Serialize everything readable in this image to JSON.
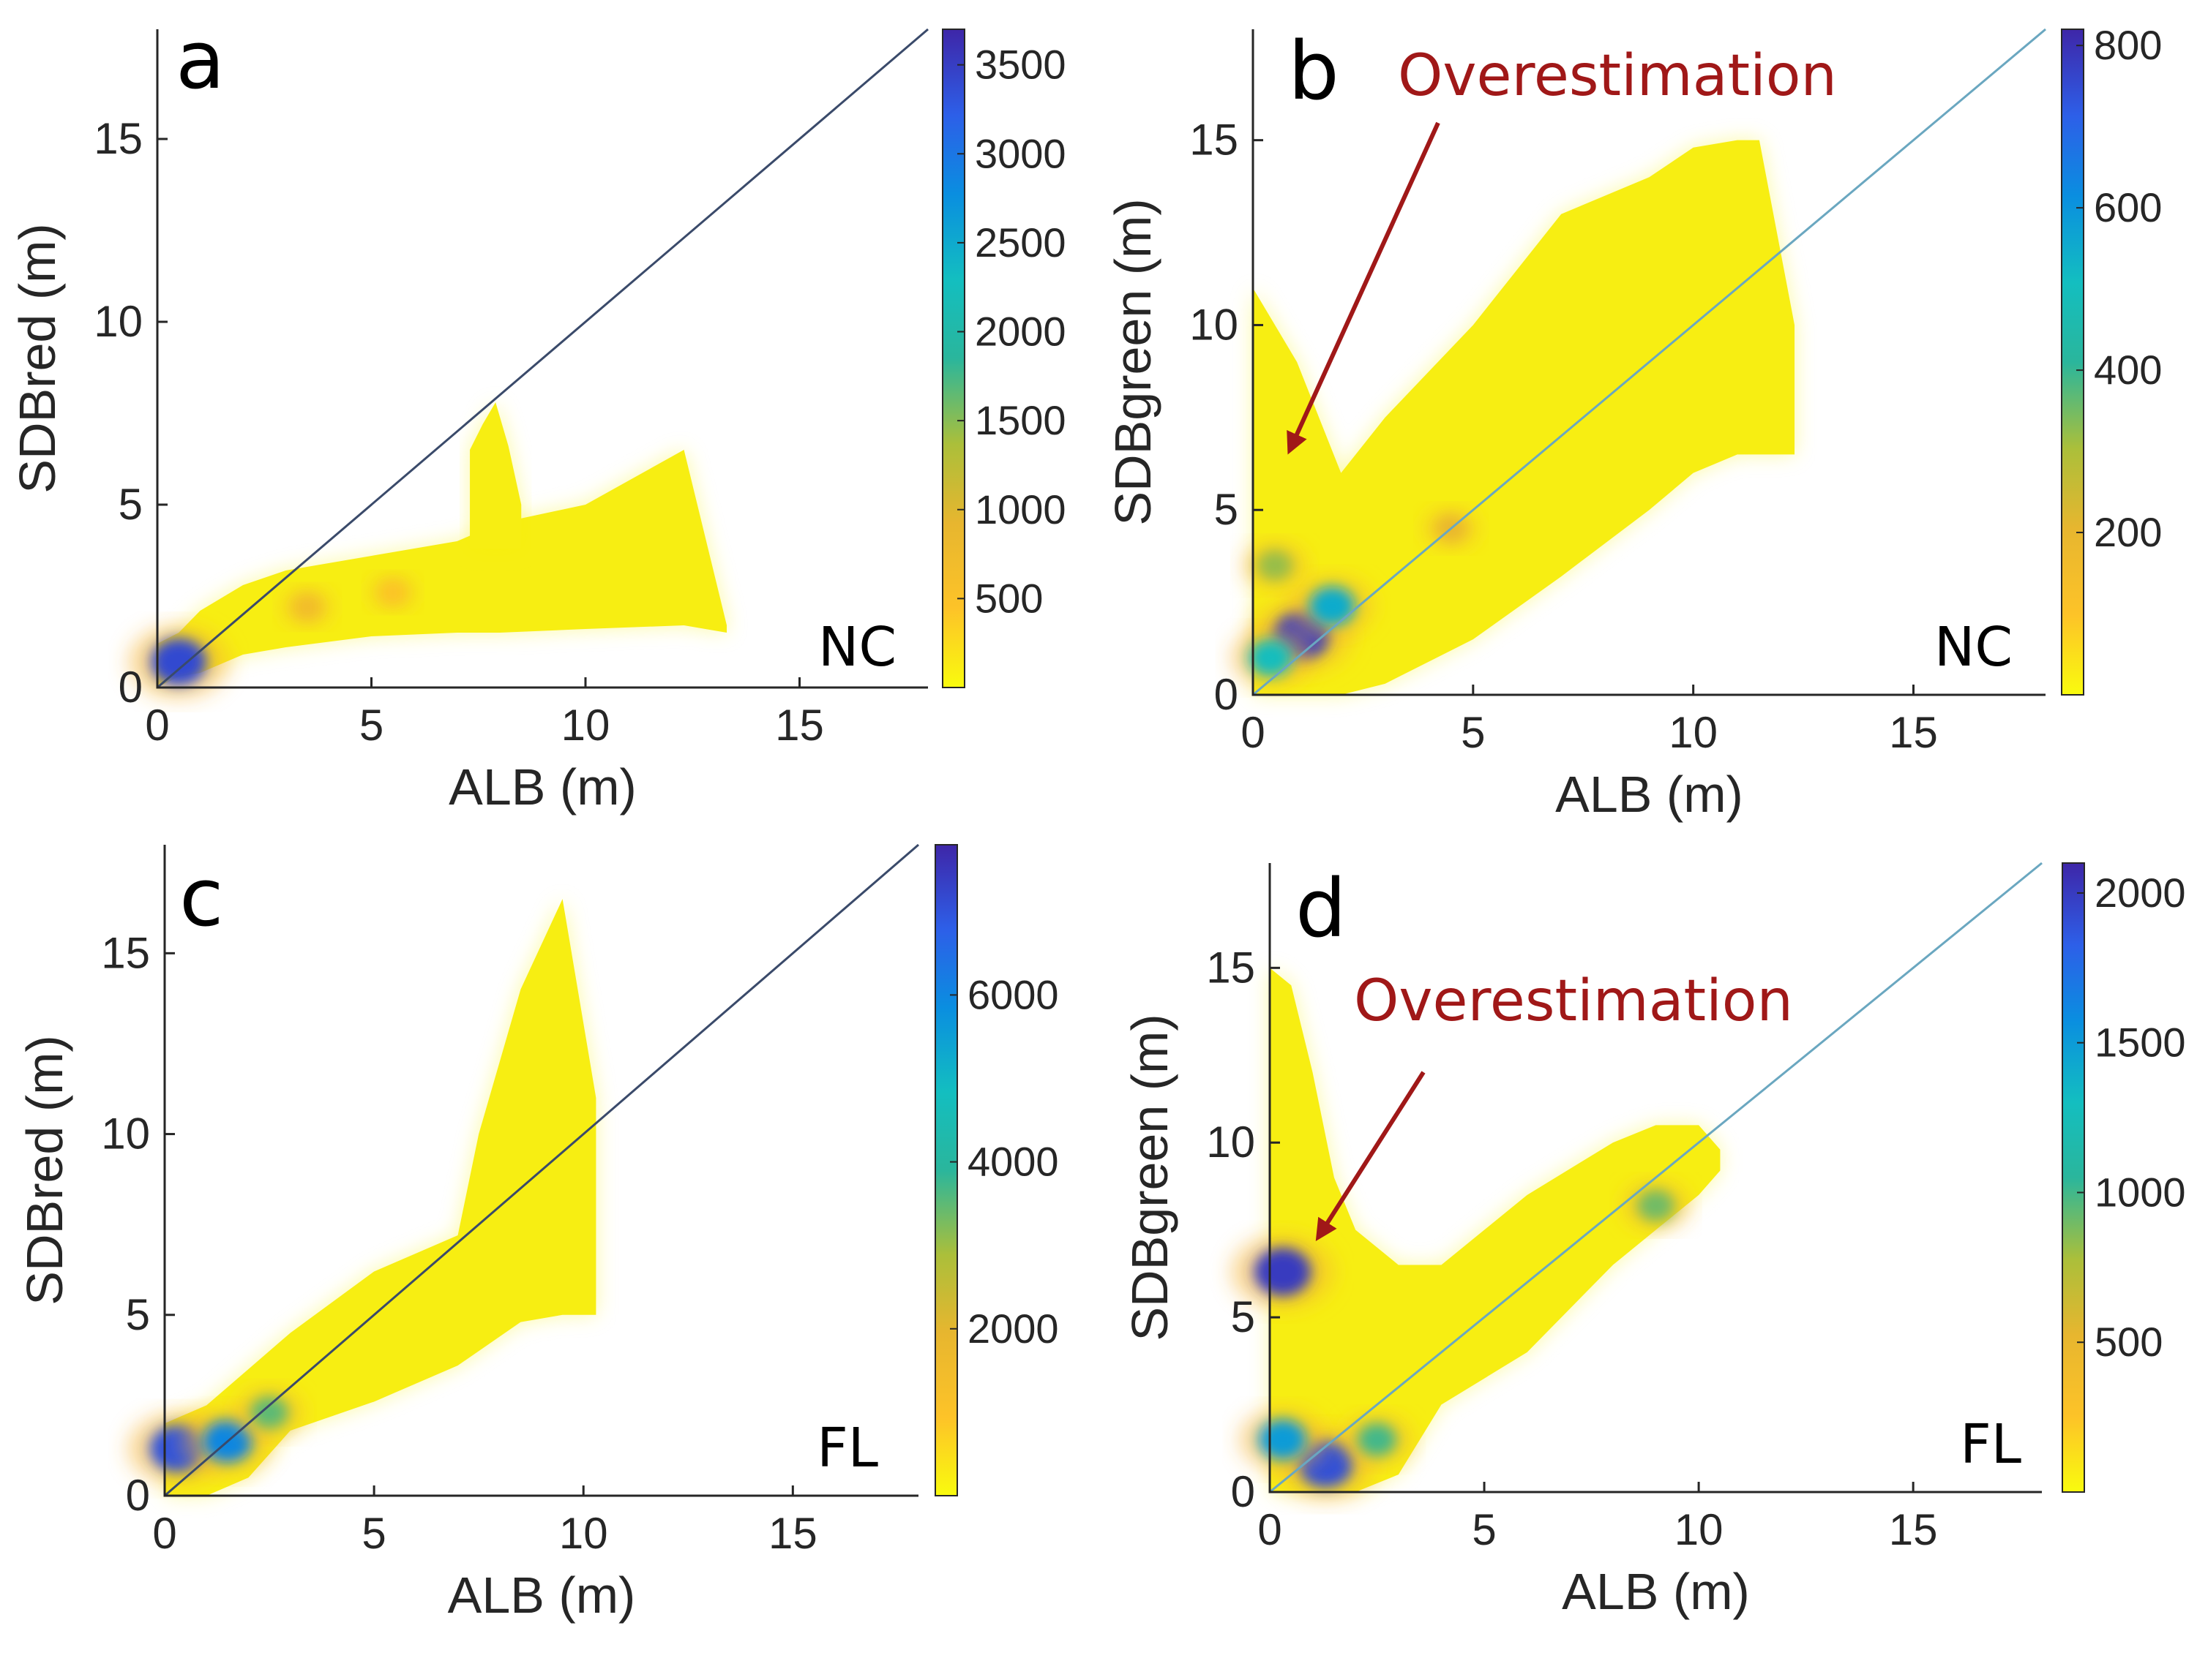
{
  "chart_data": [
    {
      "type": "density-scatter",
      "panel_label": "a",
      "region": "NC",
      "xlabel": "ALB (m)",
      "ylabel": "SDBred (m)",
      "xlim": [
        0,
        18
      ],
      "ylim": [
        0,
        18
      ],
      "xticks": [
        "0",
        "5",
        "10",
        "15"
      ],
      "yticks": [
        "0",
        "5",
        "10",
        "15"
      ],
      "reference_line": "1:1",
      "colorbar": {
        "min": 0,
        "max": 3700,
        "ticks": [
          "500",
          "1000",
          "1500",
          "2000",
          "2500",
          "3000",
          "3500"
        ]
      },
      "annotation": null,
      "cloud": [
        {
          "x": [
            0,
            0.5,
            1,
            2,
            3,
            5,
            7,
            8,
            10,
            12.3,
            13.3
          ],
          "y_low": [
            0,
            0.3,
            0.4,
            0.9,
            1.1,
            1.4,
            1.5,
            1.5,
            1.6,
            1.7,
            1.5
          ],
          "y_high": [
            1.2,
            1.5,
            2.1,
            2.8,
            3.2,
            3.6,
            4.0,
            4.5,
            5.0,
            6.5,
            1.7
          ]
        },
        {
          "x": [
            7.3,
            7.6,
            7.9,
            8.2,
            8.5
          ],
          "y_low": [
            3.8,
            3.8,
            3.8,
            3.8,
            3.8
          ],
          "y_high": [
            6.5,
            7.2,
            7.8,
            6.6,
            5.0
          ]
        }
      ],
      "hotspots": [
        {
          "x": 0.5,
          "y": 0.7,
          "count": 3400
        },
        {
          "x": 3.5,
          "y": 2.2,
          "count": 700
        },
        {
          "x": 5.5,
          "y": 2.6,
          "count": 450
        }
      ]
    },
    {
      "type": "density-scatter",
      "panel_label": "b",
      "region": "NC",
      "xlabel": "ALB (m)",
      "ylabel": "SDBgreen (m)",
      "xlim": [
        0,
        18
      ],
      "ylim": [
        0,
        18
      ],
      "xticks": [
        "0",
        "5",
        "10",
        "15"
      ],
      "yticks": [
        "0",
        "5",
        "10",
        "15"
      ],
      "reference_line": "1:1",
      "colorbar": {
        "min": 0,
        "max": 820,
        "ticks": [
          "200",
          "400",
          "600",
          "800"
        ]
      },
      "annotation": "Overestimation",
      "cloud": [
        {
          "x": [
            0,
            1,
            2,
            3,
            5,
            7,
            9,
            10,
            11,
            11.5,
            12.3
          ],
          "y_low": [
            0,
            0,
            0,
            0.3,
            1.5,
            3.2,
            5.0,
            6.0,
            6.5,
            6.5,
            6.5
          ],
          "y_high": [
            11,
            9,
            6,
            7.5,
            10,
            13,
            14,
            14.8,
            15,
            15,
            10
          ]
        }
      ],
      "hotspots": [
        {
          "x": 1.1,
          "y": 1.6,
          "count": 780
        },
        {
          "x": 1.8,
          "y": 2.4,
          "count": 550
        },
        {
          "x": 0.4,
          "y": 1.0,
          "count": 500
        },
        {
          "x": 0.5,
          "y": 3.5,
          "count": 320
        },
        {
          "x": 4.5,
          "y": 4.5,
          "count": 200
        }
      ]
    },
    {
      "type": "density-scatter",
      "panel_label": "c",
      "region": "FL",
      "xlabel": "ALB (m)",
      "ylabel": "SDBred (m)",
      "xlim": [
        0,
        18
      ],
      "ylim": [
        0,
        18
      ],
      "xticks": [
        "0",
        "5",
        "10",
        "15"
      ],
      "yticks": [
        "0",
        "5",
        "10",
        "15"
      ],
      "reference_line": "1:1",
      "colorbar": {
        "min": 0,
        "max": 7800,
        "ticks": [
          "2000",
          "4000",
          "6000"
        ]
      },
      "annotation": null,
      "cloud": [
        {
          "x": [
            0,
            1,
            2,
            3,
            5,
            7,
            7.5,
            8.5,
            9.5,
            10.3
          ],
          "y_low": [
            0,
            0,
            0.5,
            1.8,
            2.6,
            3.6,
            4.0,
            4.8,
            5.0,
            5.0
          ],
          "y_high": [
            2,
            2.5,
            3.5,
            4.5,
            6.2,
            7.2,
            10,
            14,
            16.5,
            11
          ]
        }
      ],
      "hotspots": [
        {
          "x": 0.3,
          "y": 1.3,
          "count": 7000
        },
        {
          "x": 1.5,
          "y": 1.5,
          "count": 6000
        },
        {
          "x": 2.5,
          "y": 2.3,
          "count": 3500
        }
      ]
    },
    {
      "type": "density-scatter",
      "panel_label": "d",
      "region": "FL",
      "xlabel": "ALB (m)",
      "ylabel": "SDBgreen (m)",
      "xlim": [
        0,
        18
      ],
      "ylim": [
        0,
        18
      ],
      "xticks": [
        "0",
        "5",
        "10",
        "15"
      ],
      "yticks": [
        "0",
        "5",
        "10",
        "15"
      ],
      "reference_line": "1:1",
      "colorbar": {
        "min": 0,
        "max": 2100,
        "ticks": [
          "500",
          "1000",
          "1500",
          "2000"
        ]
      },
      "annotation": "Overestimation",
      "cloud": [
        {
          "x": [
            0,
            0.5,
            1,
            1.5,
            2,
            3,
            4,
            6,
            8,
            9,
            10,
            10.5
          ],
          "y_low": [
            0,
            0,
            0,
            0,
            0,
            0.5,
            2.5,
            4.0,
            6.5,
            7.5,
            8.5,
            9.2
          ],
          "y_high": [
            15,
            14.5,
            12,
            9,
            7.5,
            6.5,
            6.5,
            8.5,
            10,
            10.5,
            10.5,
            9.8
          ]
        }
      ],
      "hotspots": [
        {
          "x": 0.3,
          "y": 6.3,
          "count": 2000
        },
        {
          "x": 1.3,
          "y": 0.8,
          "count": 1900
        },
        {
          "x": 0.3,
          "y": 1.5,
          "count": 1500
        },
        {
          "x": 2.5,
          "y": 1.5,
          "count": 1000
        },
        {
          "x": 9.0,
          "y": 8.2,
          "count": 900
        }
      ]
    }
  ]
}
